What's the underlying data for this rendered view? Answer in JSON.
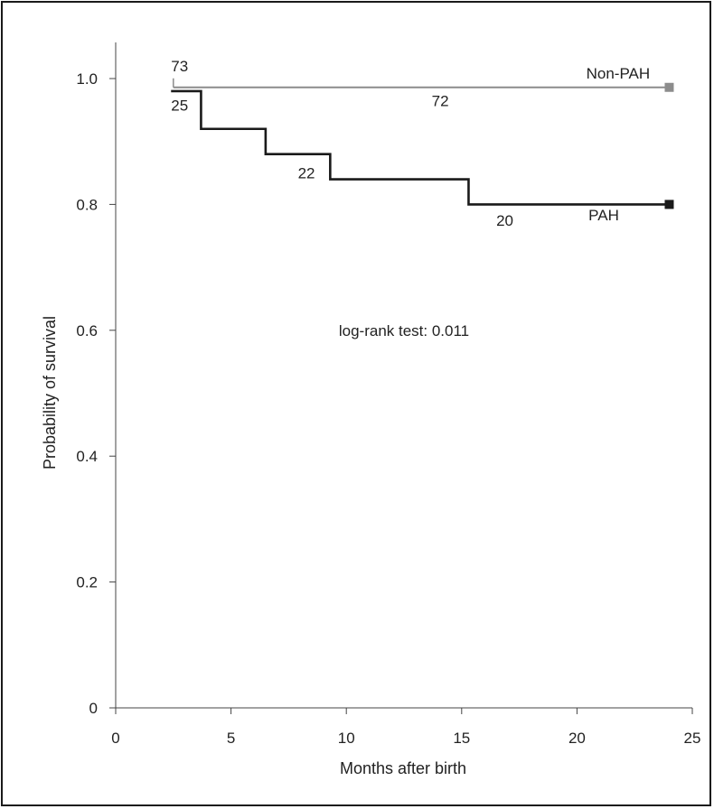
{
  "chart_data": {
    "type": "line",
    "title": "",
    "xlabel": "Months after birth",
    "ylabel": "Probability of survival",
    "xlim": [
      0,
      25
    ],
    "ylim": [
      0,
      1.0
    ],
    "x_ticks": [
      0,
      5,
      10,
      15,
      20,
      25
    ],
    "x_tick_labels": [
      "0",
      "5",
      "10",
      "15",
      "20",
      "25"
    ],
    "y_ticks": [
      0,
      0.2,
      0.4,
      0.6,
      0.8,
      1.0
    ],
    "y_tick_labels": [
      "0",
      "0.2",
      "0.4",
      "0.6",
      "0.8",
      "1.0"
    ],
    "grid": false,
    "series": [
      {
        "name": "Non-PAH",
        "color": "#8c8c8c",
        "step": true,
        "x": [
          2.5,
          24
        ],
        "y": [
          0.986,
          0.986
        ],
        "end_marker": "square",
        "at_risk": [
          {
            "x": 2.4,
            "y": 1.02,
            "label": "73"
          },
          {
            "x": 13.7,
            "y": 0.965,
            "label": "72"
          }
        ]
      },
      {
        "name": "PAH",
        "color": "#1a1a1a",
        "step": true,
        "x": [
          2.4,
          3.7,
          6.5,
          9.3,
          15.3,
          24
        ],
        "y": [
          0.98,
          0.92,
          0.88,
          0.84,
          0.8,
          0.8
        ],
        "end_marker": "square",
        "at_risk": [
          {
            "x": 2.4,
            "y": 0.958,
            "label": "25"
          },
          {
            "x": 7.9,
            "y": 0.85,
            "label": "22"
          },
          {
            "x": 16.5,
            "y": 0.775,
            "label": "20"
          }
        ]
      }
    ],
    "series_labels": [
      {
        "text": "Non-PAH",
        "x": 20.4,
        "y": 1.0
      },
      {
        "text": "PAH",
        "x": 20.5,
        "y": 0.775
      }
    ],
    "annotations": [
      {
        "text": "log-rank test: 0.011",
        "x": 12.5,
        "y": 0.6
      }
    ]
  }
}
